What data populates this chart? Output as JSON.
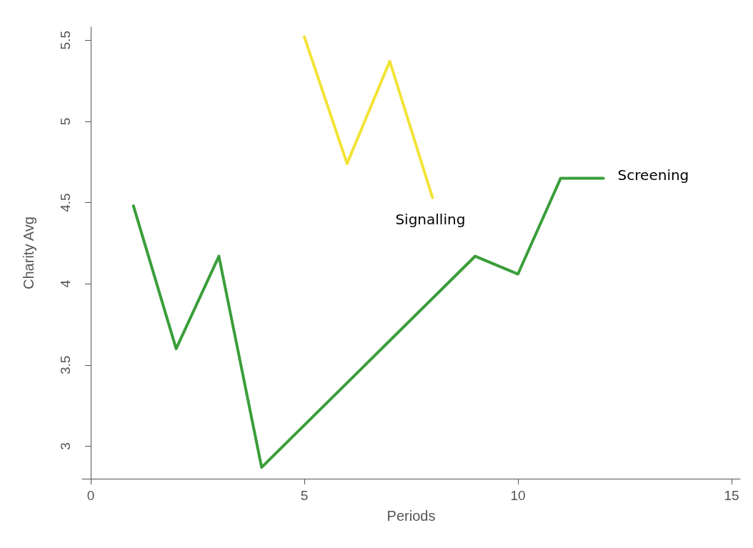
{
  "chart_data": {
    "type": "line",
    "xlabel": "Periods",
    "ylabel": "Charity Avg",
    "xlim": [
      -0.2,
      15.2
    ],
    "xticks": [
      0,
      5,
      10,
      15
    ],
    "ylim": [
      2.8,
      5.58
    ],
    "yticks": [
      3,
      3.5,
      4,
      4.5,
      5,
      5.5
    ],
    "grid": false,
    "marker": "none",
    "line_style": "solid",
    "series": [
      {
        "name": "Screening",
        "color": "#3a9e3a",
        "x": [
          1,
          2,
          3,
          4,
          9,
          10,
          11,
          12
        ],
        "values": [
          4.48,
          3.6,
          4.17,
          2.87,
          4.17,
          4.06,
          4.65,
          4.65
        ]
      },
      {
        "name": "Signalling",
        "color": "#f2e436",
        "x": [
          5,
          6,
          7,
          8
        ],
        "values": [
          5.52,
          4.74,
          5.37,
          4.53
        ]
      }
    ]
  }
}
